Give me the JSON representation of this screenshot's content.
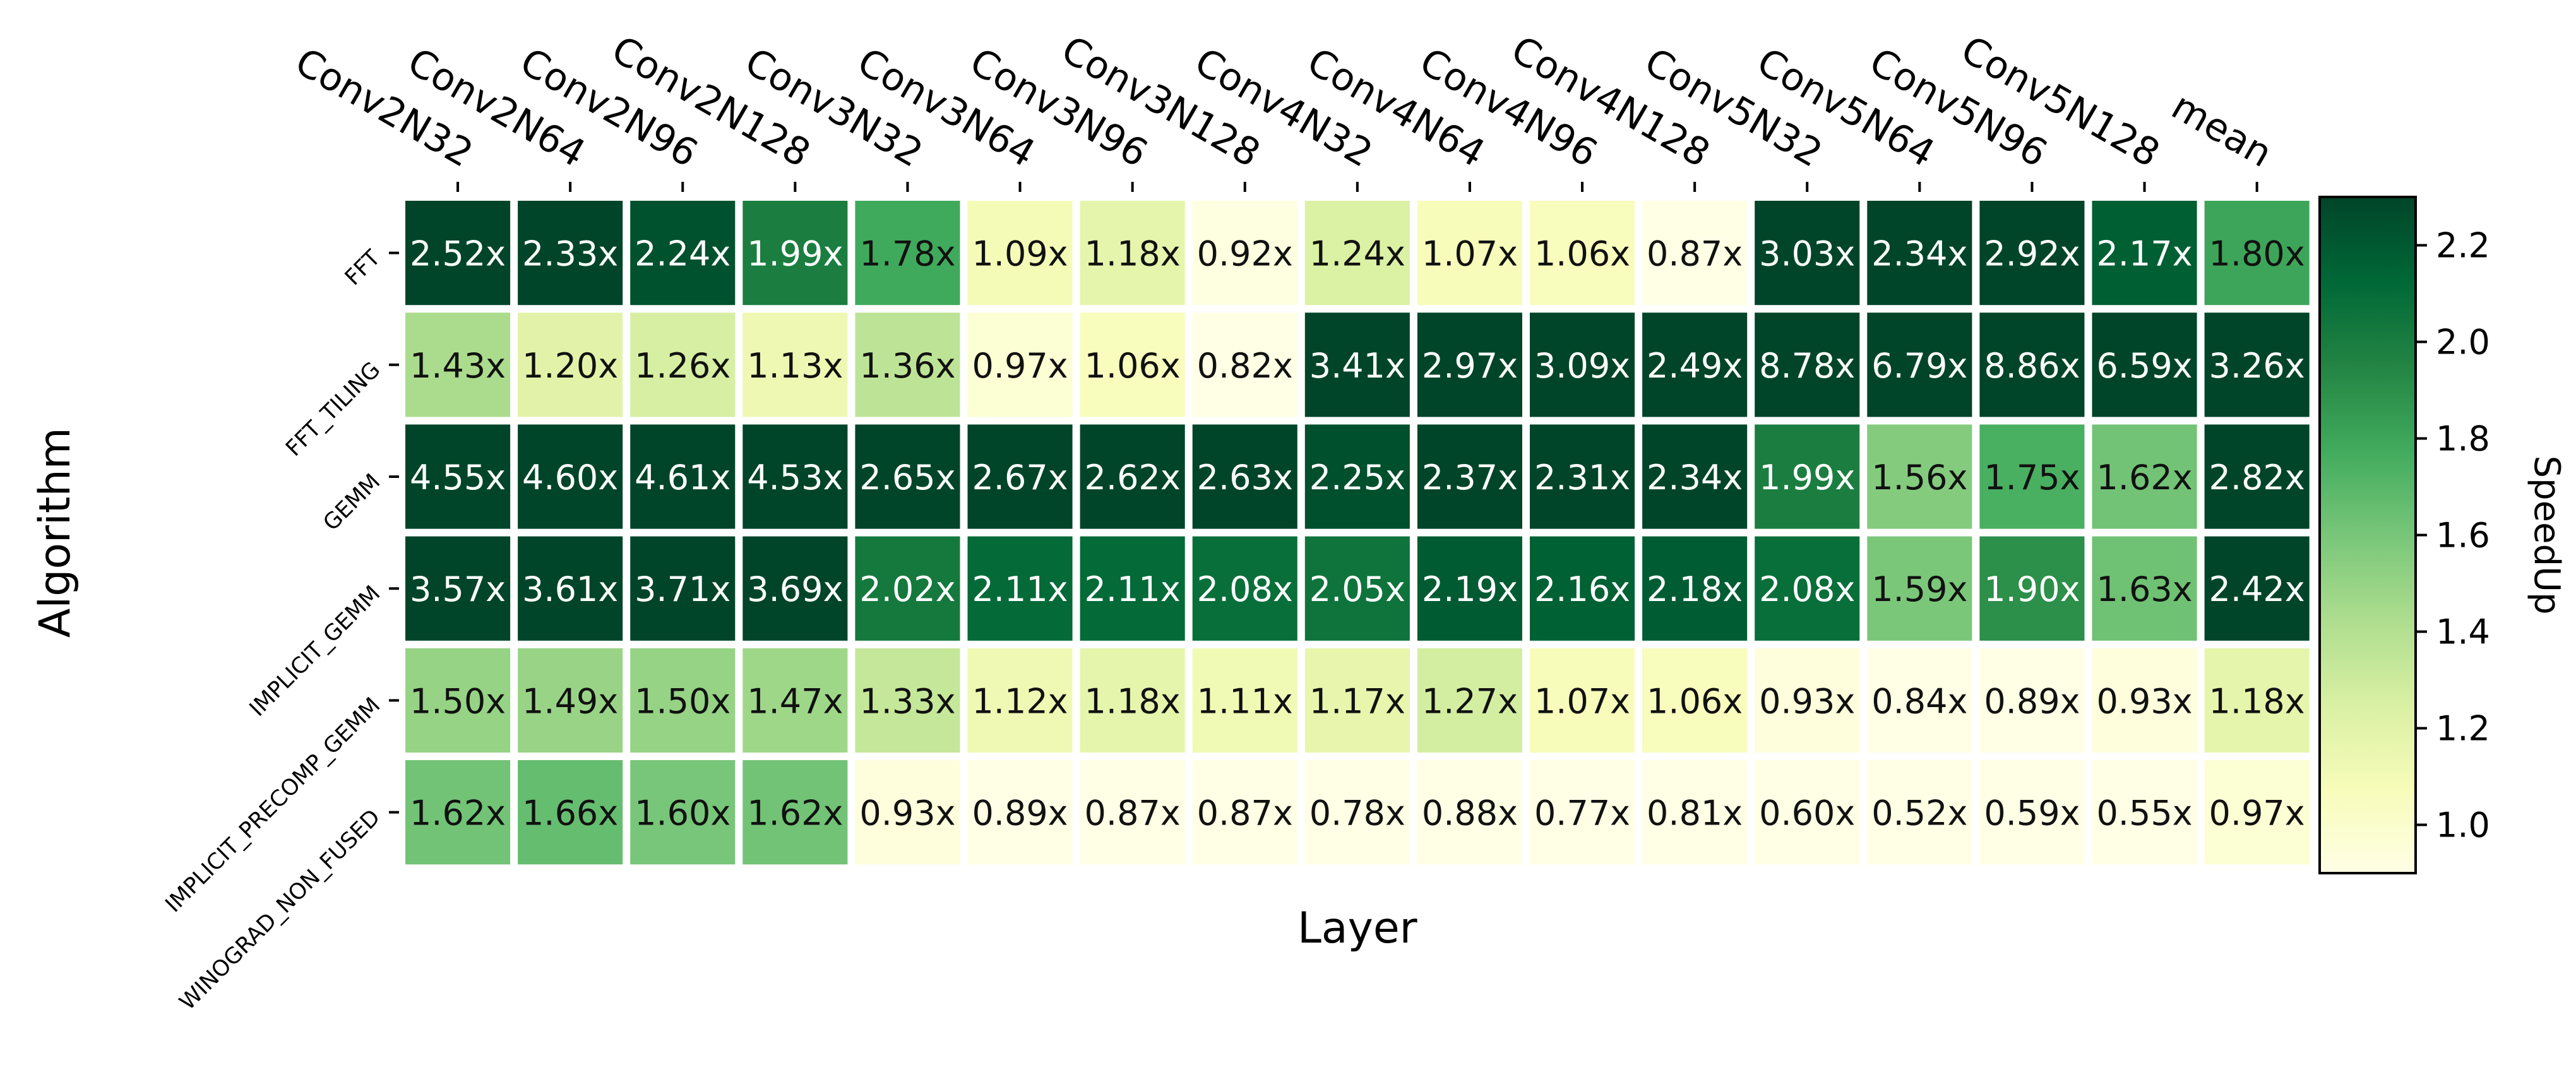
{
  "chart_data": {
    "type": "heatmap",
    "title": "",
    "xlabel": "Layer",
    "ylabel": "Algorithm",
    "colorbar_label": "SpeedUp",
    "colorbar_ticks": [
      "1.0",
      "1.2",
      "1.4",
      "1.6",
      "1.8",
      "2.0",
      "2.2"
    ],
    "colorbar_range": [
      0.9,
      2.3
    ],
    "columns": [
      "Conv2N32",
      "Conv2N64",
      "Conv2N96",
      "Conv2N128",
      "Conv3N32",
      "Conv3N64",
      "Conv3N96",
      "Conv3N128",
      "Conv4N32",
      "Conv4N64",
      "Conv4N96",
      "Conv4N128",
      "Conv5N32",
      "Conv5N64",
      "Conv5N96",
      "Conv5N128",
      "mean"
    ],
    "rows": [
      "FFT",
      "FFT_TILING",
      "GEMM",
      "IMPLICIT_GEMM",
      "IMPLICIT_PRECOMP_GEMM",
      "WINOGRAD_NON_FUSED"
    ],
    "values": [
      [
        2.52,
        2.33,
        2.24,
        1.99,
        1.78,
        1.09,
        1.18,
        0.92,
        1.24,
        1.07,
        1.06,
        0.87,
        3.03,
        2.34,
        2.92,
        2.17,
        1.8
      ],
      [
        1.43,
        1.2,
        1.26,
        1.13,
        1.36,
        0.97,
        1.06,
        0.82,
        3.41,
        2.97,
        3.09,
        2.49,
        8.78,
        6.79,
        8.86,
        6.59,
        3.26
      ],
      [
        4.55,
        4.6,
        4.61,
        4.53,
        2.65,
        2.67,
        2.62,
        2.63,
        2.25,
        2.37,
        2.31,
        2.34,
        1.99,
        1.56,
        1.75,
        1.62,
        2.82
      ],
      [
        3.57,
        3.61,
        3.71,
        3.69,
        2.02,
        2.11,
        2.11,
        2.08,
        2.05,
        2.19,
        2.16,
        2.18,
        2.08,
        1.59,
        1.9,
        1.63,
        2.42
      ],
      [
        1.5,
        1.49,
        1.5,
        1.47,
        1.33,
        1.12,
        1.18,
        1.11,
        1.17,
        1.27,
        1.07,
        1.06,
        0.93,
        0.84,
        0.89,
        0.93,
        1.18
      ],
      [
        1.62,
        1.66,
        1.6,
        1.62,
        0.93,
        0.89,
        0.87,
        0.87,
        0.78,
        0.88,
        0.77,
        0.81,
        0.6,
        0.52,
        0.59,
        0.55,
        0.97
      ]
    ],
    "cell_label_suffix": "x",
    "colormap": [
      "#ffffe5",
      "#f7fcb9",
      "#d9f0a3",
      "#addd8e",
      "#78c679",
      "#41ab5d",
      "#238443",
      "#006837",
      "#004529"
    ]
  }
}
